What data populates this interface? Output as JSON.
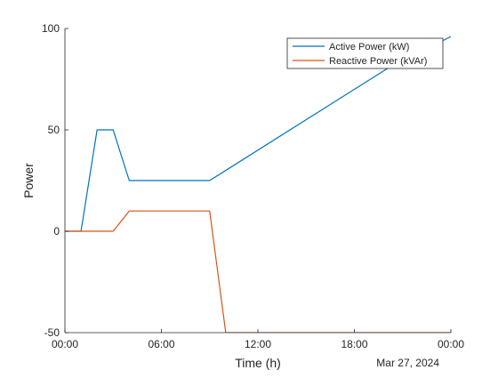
{
  "chart_data": {
    "type": "line",
    "title": "",
    "xlabel": "Time (h)",
    "ylabel": "Power",
    "date_label": "Mar 27, 2024",
    "xlim_hours": [
      0,
      24
    ],
    "ylim": [
      -50,
      100
    ],
    "x_ticks": [
      {
        "value": 0,
        "label": "00:00"
      },
      {
        "value": 6,
        "label": "06:00"
      },
      {
        "value": 12,
        "label": "12:00"
      },
      {
        "value": 18,
        "label": "18:00"
      },
      {
        "value": 24,
        "label": "00:00"
      }
    ],
    "y_ticks": [
      {
        "value": -50,
        "label": "-50"
      },
      {
        "value": 0,
        "label": "0"
      },
      {
        "value": 50,
        "label": "50"
      },
      {
        "value": 100,
        "label": "100"
      }
    ],
    "grid": false,
    "legend_position": "top-right",
    "series": [
      {
        "name": "Active Power (kW)",
        "color": "#0072BD",
        "x": [
          0,
          1,
          2,
          3,
          4,
          9,
          20,
          24
        ],
        "y": [
          0,
          0,
          50,
          50,
          25,
          25,
          80,
          96
        ]
      },
      {
        "name": "Reactive Power (kVAr)",
        "color": "#D95319",
        "x": [
          0,
          3,
          4,
          9,
          10,
          24
        ],
        "y": [
          0,
          0,
          10,
          10,
          -50,
          -50
        ]
      }
    ]
  }
}
